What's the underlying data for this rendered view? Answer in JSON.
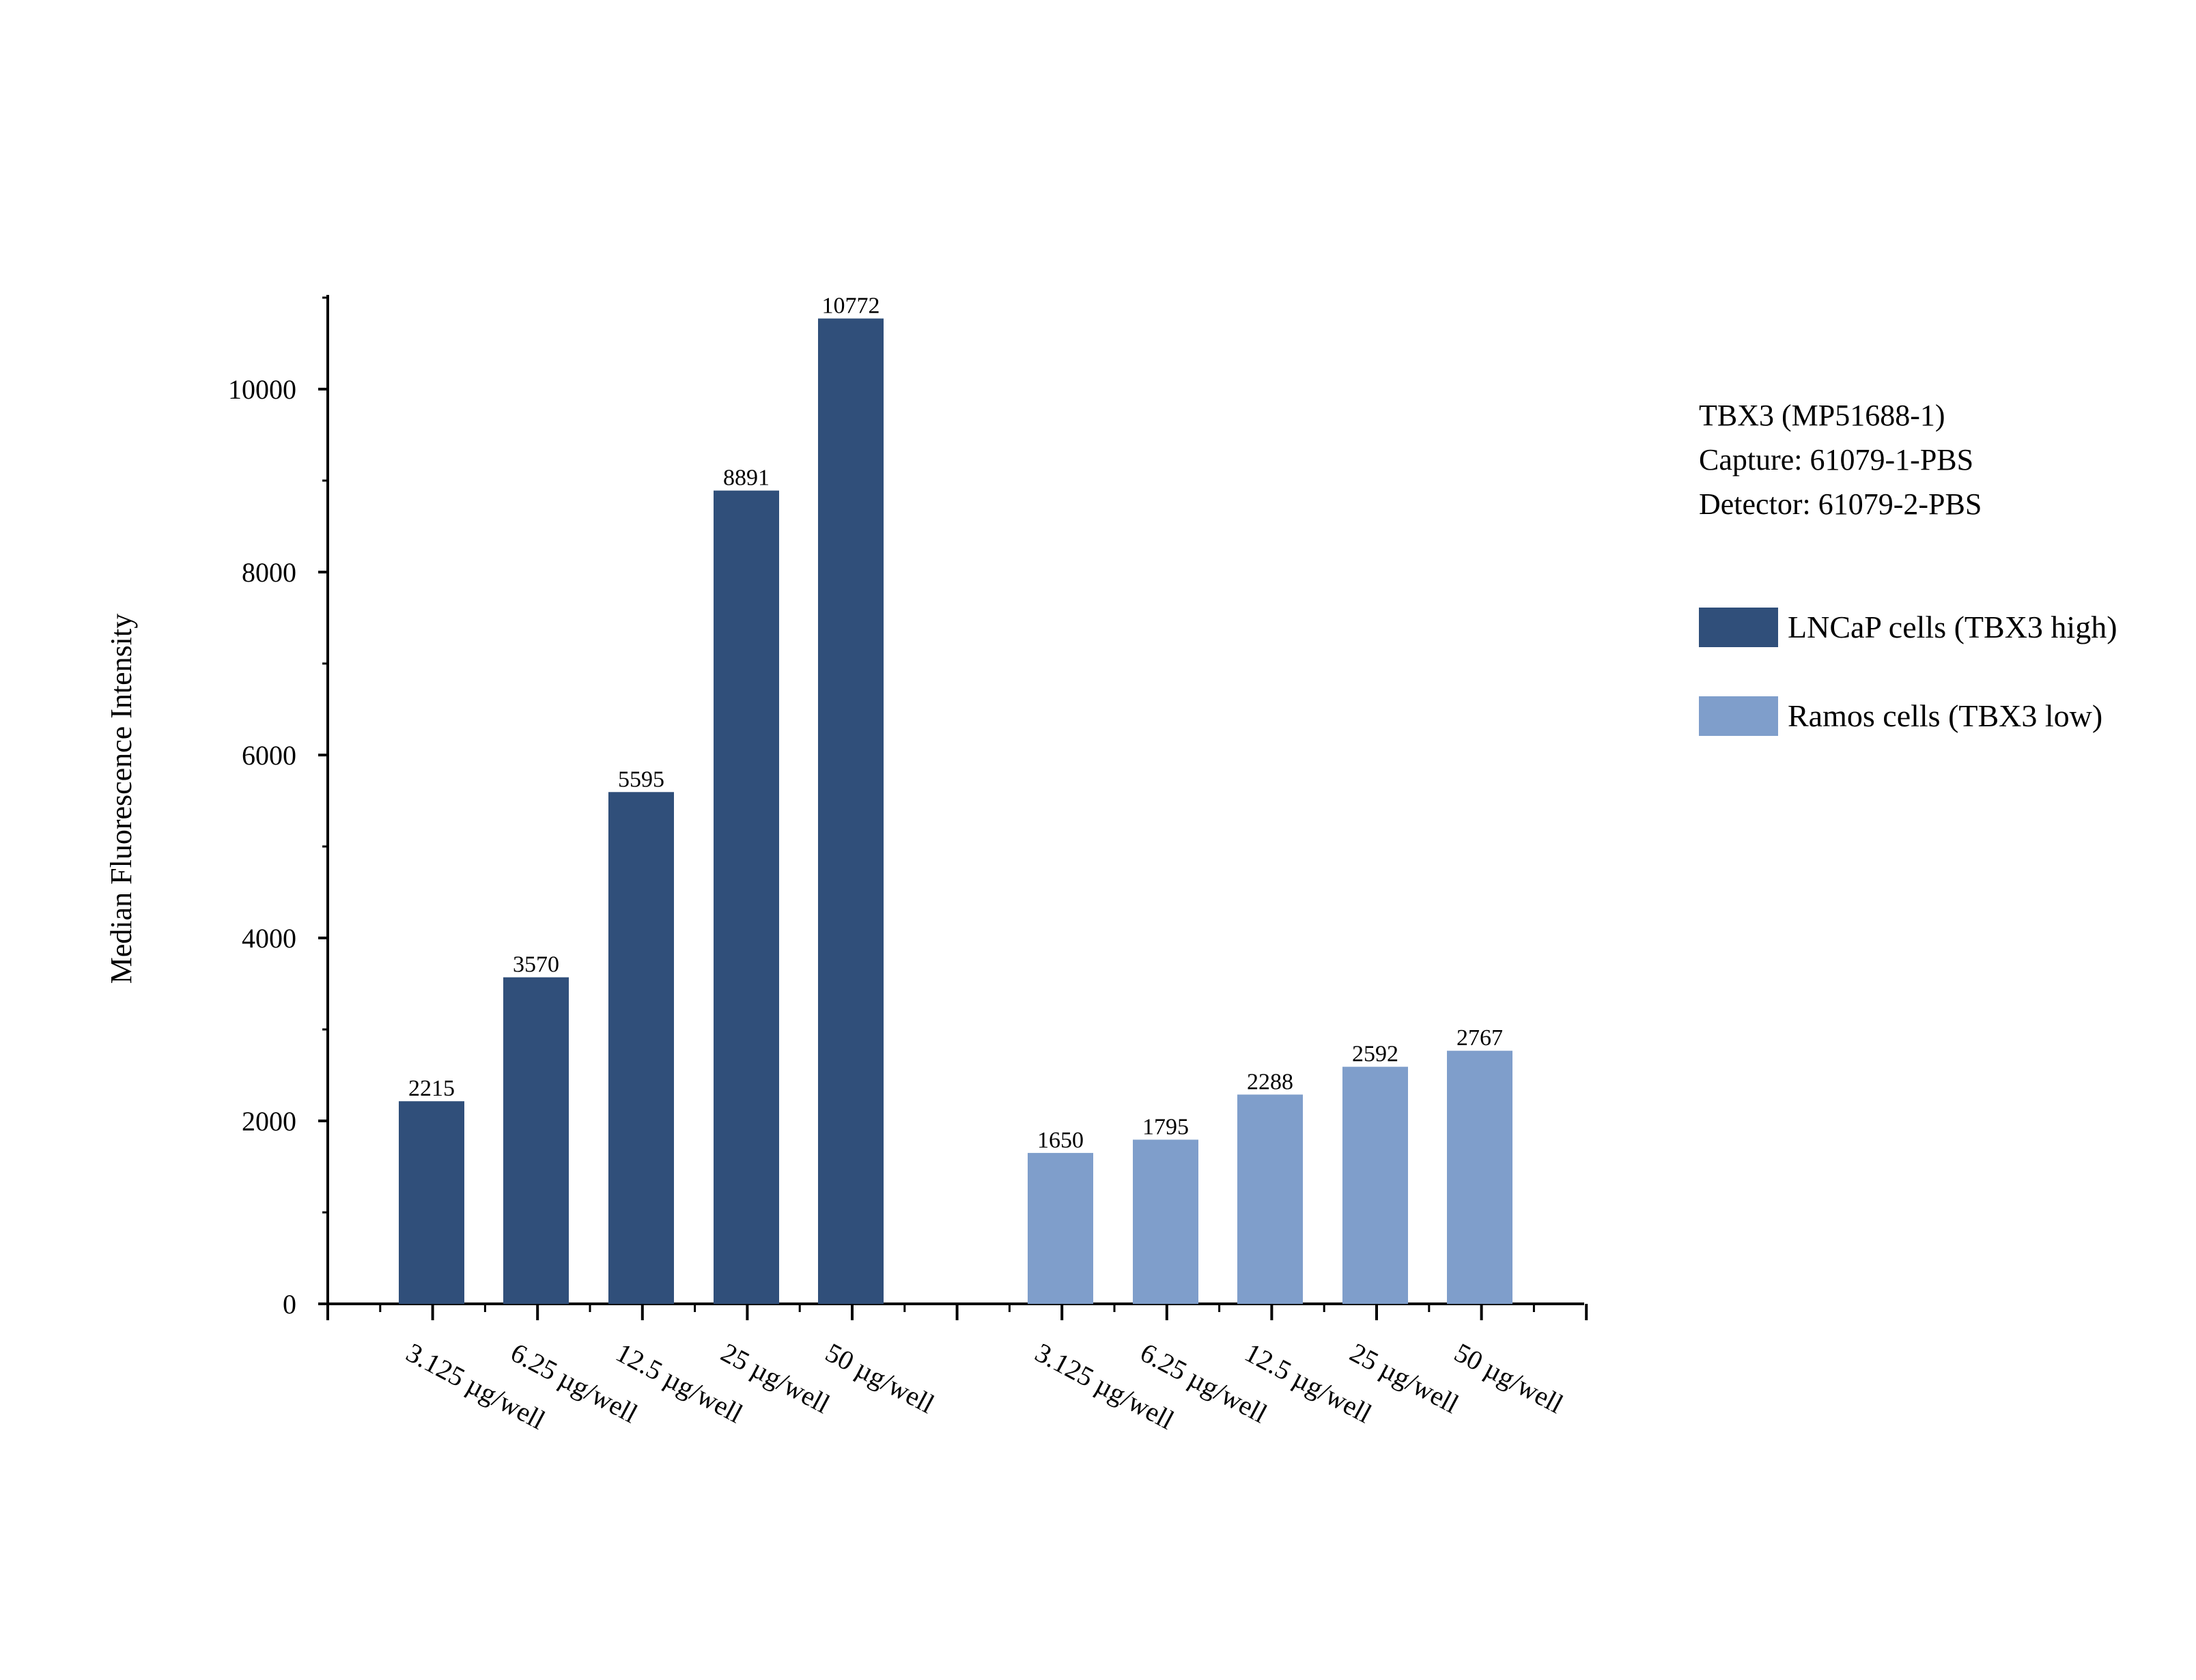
{
  "chart_data": {
    "type": "bar",
    "ylabel": "Median Fluorescence Intensity",
    "xlabel": "",
    "ylim": [
      0,
      11000
    ],
    "yticks": [
      0,
      2000,
      4000,
      6000,
      8000,
      10000
    ],
    "grid": false,
    "legend_position": "right",
    "groups": [
      {
        "series": "LNCaP cells (TBX3 high)",
        "color": "#304f7a",
        "categories": [
          "3.125 µg/well",
          "6.25 µg/well",
          "12.5 µg/well",
          "25 µg/well",
          "50 µg/well"
        ],
        "values": [
          2215,
          3570,
          5595,
          8891,
          10772
        ]
      },
      {
        "series": "Ramos cells (TBX3 low)",
        "color": "#7f9ecb",
        "categories": [
          "3.125 µg/well",
          "6.25 µg/well",
          "12.5 µg/well",
          "25 µg/well",
          "50 µg/well"
        ],
        "values": [
          1650,
          1795,
          2288,
          2592,
          2767
        ]
      }
    ]
  },
  "info": {
    "lines": [
      "TBX3 (MP51688-1)",
      "Capture: 61079-1-PBS",
      "Detector: 61079-2-PBS"
    ]
  },
  "legend": {
    "items": [
      {
        "label": "LNCaP cells (TBX3 high)",
        "color": "#304f7a"
      },
      {
        "label": "Ramos cells (TBX3 low)",
        "color": "#7f9ecb"
      }
    ]
  }
}
